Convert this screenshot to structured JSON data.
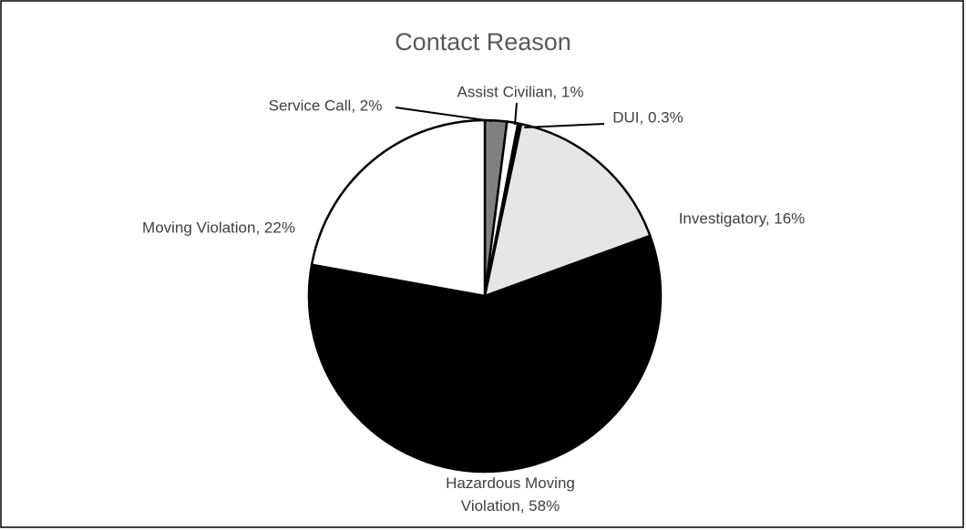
{
  "chart_data": {
    "type": "pie",
    "title": "Contact Reason",
    "categories": [
      "Service Call",
      "Assist Civilian",
      "DUI",
      "Investigatory",
      "Hazardous Moving Violation",
      "Moving Violation"
    ],
    "values": [
      2,
      1,
      0.3,
      16,
      58,
      22
    ],
    "value_labels": [
      "2%",
      "1%",
      "0.3%",
      "16%",
      "58%",
      "22%"
    ],
    "label_separator": ", ",
    "colors": [
      "#808080",
      "#ffffff",
      "#000000",
      "#e6e6e6",
      "#000000",
      "#ffffff"
    ]
  }
}
